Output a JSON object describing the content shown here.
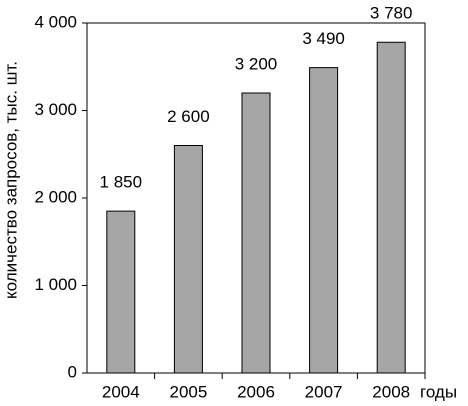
{
  "chart_data": {
    "type": "bar",
    "y_label": "количество запросов, тыс. шт.",
    "x_label": "годы",
    "categories": [
      "2004",
      "2005",
      "2006",
      "2007",
      "2008"
    ],
    "values": [
      1850,
      2600,
      3200,
      3490,
      3780
    ],
    "value_labels": [
      "1 850",
      "2 600",
      "3 200",
      "3 490",
      "3 780"
    ],
    "color": "#a6a6a6",
    "ylim": [
      0,
      4000
    ],
    "yticks": [
      0,
      {
        "value": 1000,
        "label": "1 000"
      },
      {
        "value": 2000,
        "label": "2 000"
      },
      {
        "value": 3000,
        "label": "3 000"
      },
      {
        "value": 4000,
        "label": "4 000"
      }
    ],
    "grid": false
  }
}
